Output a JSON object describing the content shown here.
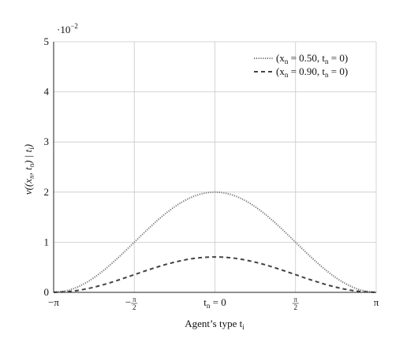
{
  "chart_data": {
    "type": "line",
    "title": "",
    "xlabel": "Agent’s type t",
    "xlabel_sub": "i",
    "ylabel": "v((x",
    "ylabel_parts": [
      "v((x",
      "n",
      ", t",
      "n",
      ") | t",
      "i",
      ")"
    ],
    "y_scale_note": "·10",
    "y_scale_exp": "−2",
    "xlim": [
      -3.14159,
      3.14159
    ],
    "ylim": [
      0,
      5
    ],
    "grid": true,
    "legend_position": "top-right",
    "x_ticks": [
      {
        "value": -3.14159,
        "label": "−π"
      },
      {
        "value": -1.5708,
        "label": "−",
        "frac": true
      },
      {
        "value": 0,
        "label": "t",
        "sub": "n",
        "suffix": " = 0"
      },
      {
        "value": 1.5708,
        "label": "",
        "frac": true
      },
      {
        "value": 3.14159,
        "label": "π"
      }
    ],
    "frac_num": "π",
    "frac_den": "2",
    "y_ticks": [
      {
        "value": 0,
        "label": "0"
      },
      {
        "value": 1,
        "label": "1"
      },
      {
        "value": 2,
        "label": "2"
      },
      {
        "value": 3,
        "label": "3"
      },
      {
        "value": 4,
        "label": "4"
      },
      {
        "value": 5,
        "label": "5"
      }
    ],
    "series": [
      {
        "name": "(x_n = 0.50, t_n = 0)",
        "legend_parts": [
          "(x",
          "n",
          " = 0.50, t",
          "n",
          " = 0)"
        ],
        "style": "dotted",
        "color": "#777777",
        "x": [
          -3.14159,
          -2.82743,
          -2.51327,
          -2.19911,
          -1.88496,
          -1.5708,
          -1.25664,
          -0.94248,
          -0.62832,
          -0.31416,
          0,
          0.31416,
          0.62832,
          0.94248,
          1.25664,
          1.5708,
          1.88496,
          2.19911,
          2.51327,
          2.82743,
          3.14159
        ],
        "y": [
          0.0,
          0.049,
          0.191,
          0.412,
          0.691,
          1.0,
          1.309,
          1.588,
          1.809,
          1.951,
          2.0,
          1.951,
          1.809,
          1.588,
          1.309,
          1.0,
          0.691,
          0.412,
          0.191,
          0.049,
          0.0
        ]
      },
      {
        "name": "(x_n = 0.90, t_n = 0)",
        "legend_parts": [
          "(x",
          "n",
          " = 0.90, t",
          "n",
          " = 0)"
        ],
        "style": "dashed",
        "color": "#444444",
        "x": [
          -3.14159,
          -2.82743,
          -2.51327,
          -2.19911,
          -1.88496,
          -1.5708,
          -1.25664,
          -0.94248,
          -0.62832,
          -0.31416,
          0,
          0.31416,
          0.62832,
          0.94248,
          1.25664,
          1.5708,
          1.88496,
          2.19911,
          2.51327,
          2.82743,
          3.14159
        ],
        "y": [
          0.0,
          0.0173,
          0.0675,
          0.1455,
          0.2439,
          0.353,
          0.462,
          0.5605,
          0.6385,
          0.6886,
          0.706,
          0.6886,
          0.6385,
          0.5605,
          0.462,
          0.353,
          0.2439,
          0.1455,
          0.0675,
          0.0173,
          0.0
        ]
      }
    ]
  }
}
